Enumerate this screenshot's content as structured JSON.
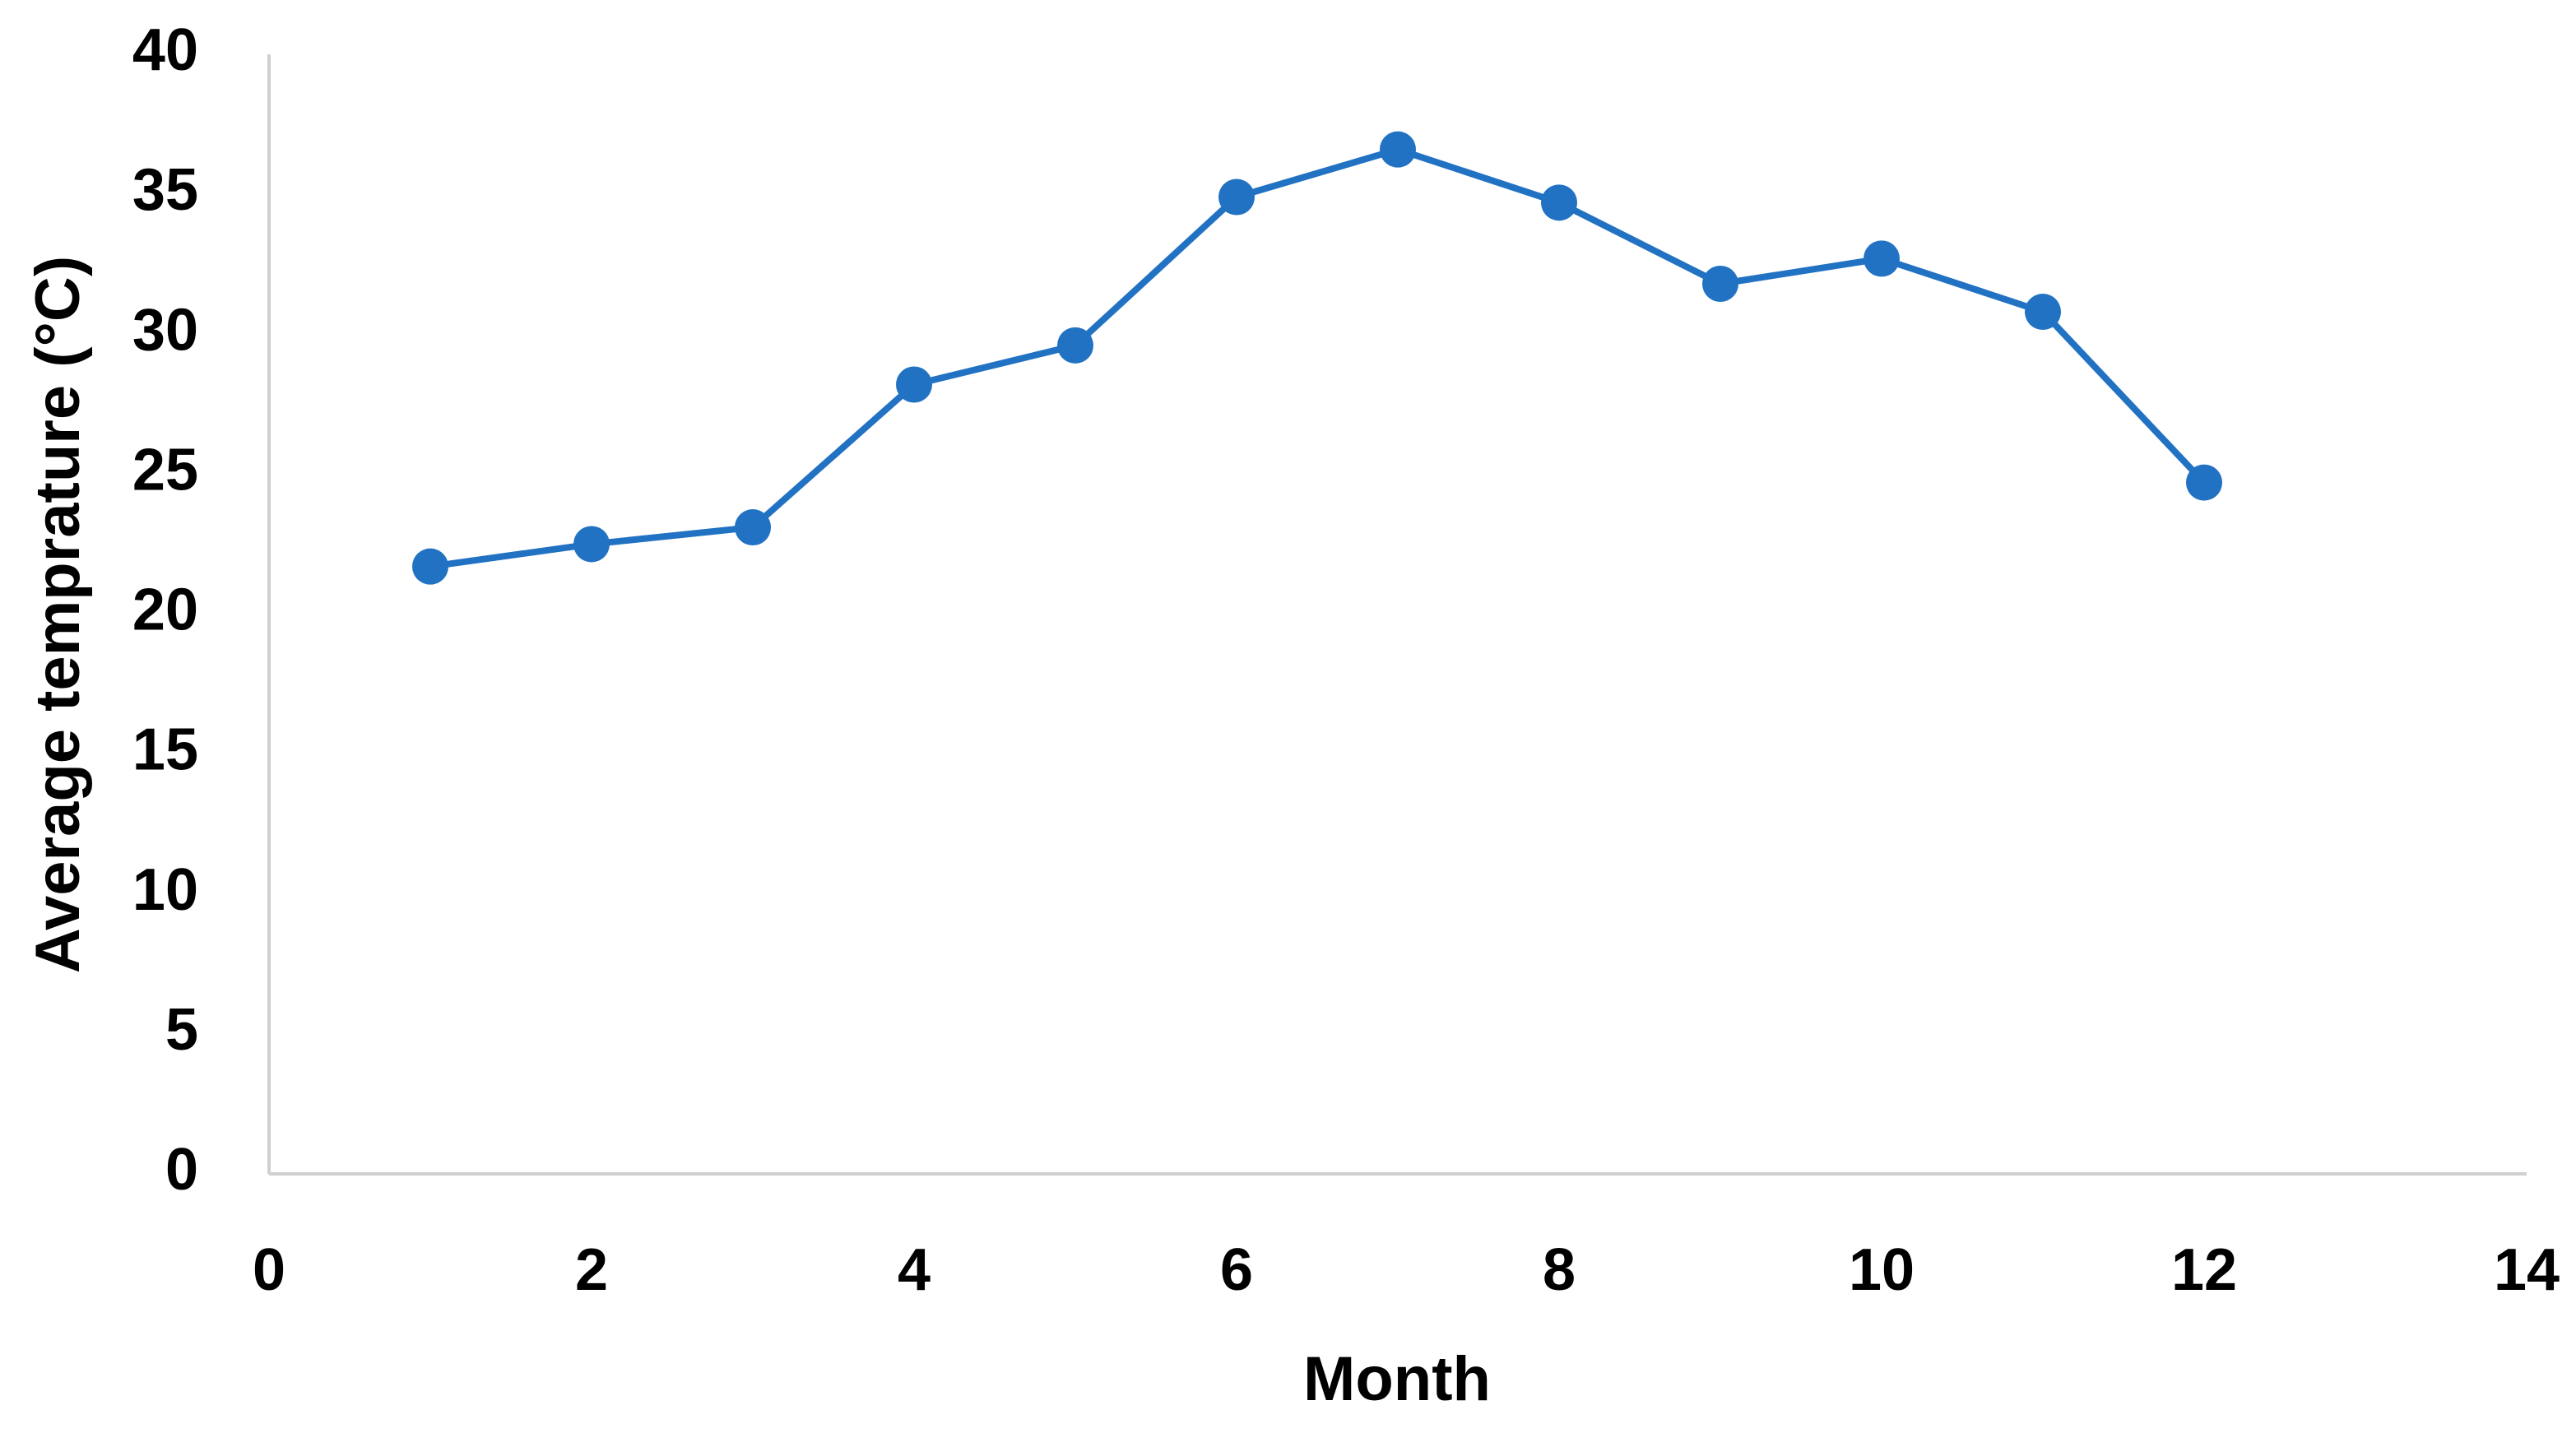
{
  "chart_data": {
    "type": "line",
    "x_label": "Month",
    "y_label": "Average temprature (°C)",
    "x": [
      1,
      2,
      3,
      4,
      5,
      6,
      7,
      8,
      9,
      10,
      11,
      12
    ],
    "series": [
      {
        "color": "#2272c3",
        "values": [
          21.7,
          22.5,
          23.1,
          28.2,
          29.6,
          34.9,
          36.6,
          34.7,
          31.8,
          32.7,
          30.8,
          24.7
        ]
      }
    ],
    "xlim": [
      0,
      14
    ],
    "xticks": [
      0,
      2,
      4,
      6,
      8,
      10,
      12,
      14
    ],
    "ylim": [
      0,
      40
    ],
    "yticks": [
      0,
      5,
      10,
      15,
      20,
      25,
      30,
      35,
      40
    ],
    "grid": false
  }
}
